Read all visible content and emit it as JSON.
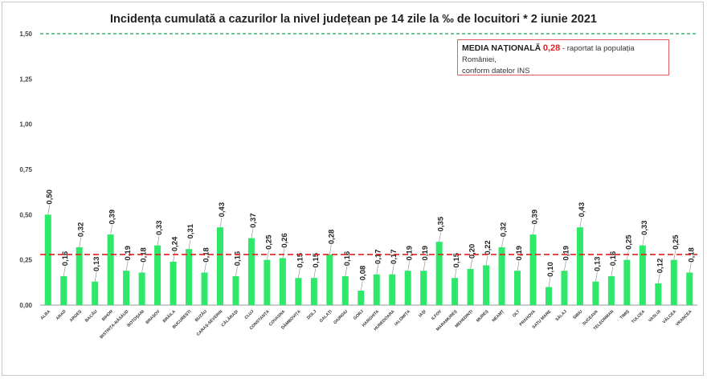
{
  "chart_data": {
    "type": "bar",
    "title": "Incidența cumulată a cazurilor la nivel județean pe 14 zile la ‰ de locuitori *  2 iunie 2021",
    "xlabel": "",
    "ylabel": "",
    "ylim": [
      0,
      1.5
    ],
    "yticks": [
      "0,00",
      "0,25",
      "0,50",
      "0,75",
      "1,00",
      "1,25",
      "1,50"
    ],
    "categories": [
      "ALBA",
      "ARAD",
      "ARGEȘ",
      "BACĂU",
      "BIHOR",
      "BISTRIȚA-NĂSĂUD",
      "BOTOȘANI",
      "BRAȘOV",
      "BRĂILA",
      "BUCUREȘTI",
      "BUZĂU",
      "CARAȘ-SEVERIN",
      "CĂLĂRAȘI",
      "CLUJ",
      "CONSTANȚA",
      "COVASNA",
      "DÂMBOVIȚA",
      "DOLJ",
      "GALAȚI",
      "GIURGIU",
      "GORJ",
      "HARGHITA",
      "HUNEDOARA",
      "IALOMIȚA",
      "IAȘI",
      "ILFOV",
      "MARAMUREȘ",
      "MEHEDINȚI",
      "MUREȘ",
      "NEAMȚ",
      "OLT",
      "PRAHOVA",
      "SATU MARE",
      "SĂLAJ",
      "SIBIU",
      "SUCEAVA",
      "TELEORMAN",
      "TIMIȘ",
      "TULCEA",
      "VASLUI",
      "VÂLCEA",
      "VRANCEA"
    ],
    "values": [
      0.5,
      0.16,
      0.32,
      0.13,
      0.39,
      0.19,
      0.18,
      0.33,
      0.24,
      0.31,
      0.18,
      0.43,
      0.16,
      0.37,
      0.25,
      0.26,
      0.15,
      0.15,
      0.28,
      0.16,
      0.08,
      0.17,
      0.17,
      0.19,
      0.19,
      0.35,
      0.15,
      0.2,
      0.22,
      0.32,
      0.19,
      0.39,
      0.1,
      0.19,
      0.43,
      0.13,
      0.16,
      0.25,
      0.33,
      0.12,
      0.25,
      0.18
    ],
    "labels": [
      "0,50",
      "0,16",
      "0,32",
      "0,13",
      "0,39",
      "0,19",
      "0,18",
      "0,33",
      "0,24",
      "0,31",
      "0,18",
      "0,43",
      "0,16",
      "0,37",
      "0,25",
      "0,26",
      "0,15",
      "0,15",
      "0,28",
      "0,16",
      "0,08",
      "0,17",
      "0,17",
      "0,19",
      "0,19",
      "0,35",
      "0,15",
      "0,20",
      "0,22",
      "0,32",
      "0,19",
      "0,39",
      "0,10",
      "0,19",
      "0,43",
      "0,13",
      "0,16",
      "0,25",
      "0,33",
      "0,12",
      "0,25",
      "0,18"
    ],
    "reference_lines": [
      {
        "value": 1.5,
        "color": "#1aa35a",
        "style": "dashed"
      },
      {
        "value": 0.28,
        "color": "#e02020",
        "style": "dashed"
      }
    ],
    "bar_color": "#2ee86a",
    "grid": false
  },
  "legend": {
    "label": "MEDIA NAȚIONALĂ",
    "value": "0,28",
    "note_line1": "- raportat la populația României,",
    "note_line2": "conform datelor INS"
  }
}
